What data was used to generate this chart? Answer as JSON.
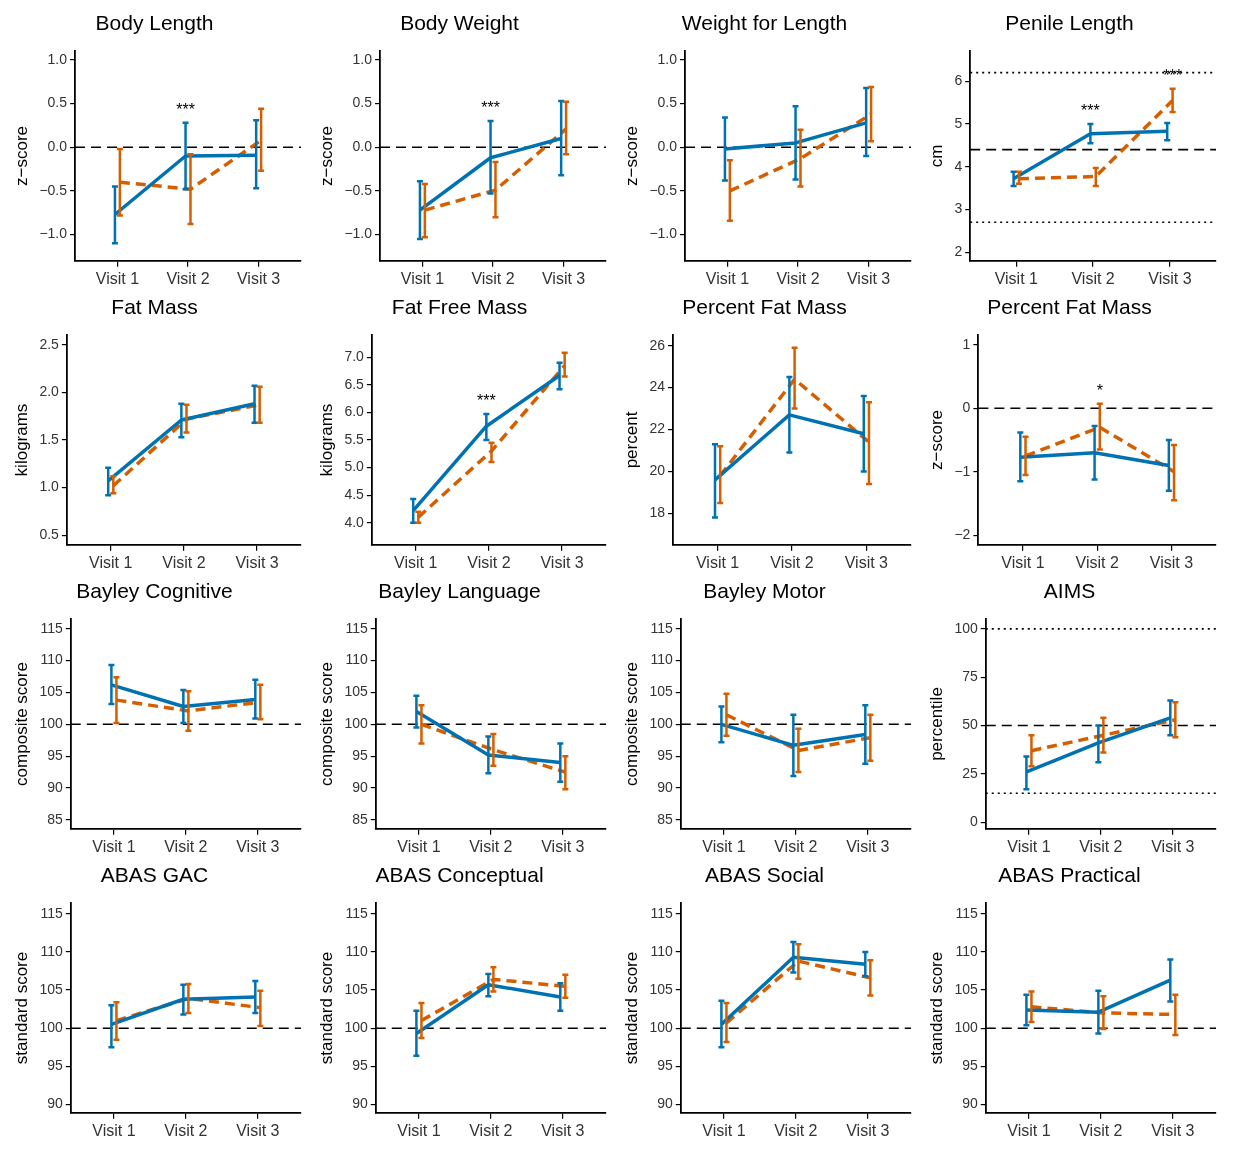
{
  "chart_data": [
    {
      "type": "line",
      "title": "Body Length",
      "ylabel": "z−score",
      "categories": [
        "Visit 1",
        "Visit 2",
        "Visit 3"
      ],
      "ylim": [
        -1.3,
        1.1
      ],
      "yticks": [
        {
          "value": -1,
          "label": "−1.0"
        },
        {
          "value": -0.5,
          "label": "−0.5"
        },
        {
          "value": 0,
          "label": "0.0"
        },
        {
          "value": 0.5,
          "label": "0.5"
        },
        {
          "value": 1,
          "label": "1.0"
        }
      ],
      "marker": "none",
      "series": [
        {
          "color": "#0072b2",
          "line_style": "solid",
          "values": [
            -0.77,
            -0.1,
            -0.09
          ],
          "errors": [
            [
              -1.1,
              -0.45
            ],
            [
              -0.48,
              0.28
            ],
            [
              -0.47,
              0.31
            ]
          ],
          "value_labels": [
            null,
            "***",
            null
          ]
        },
        {
          "color": "#d55e00",
          "line_style": "dashed",
          "values": [
            -0.4,
            -0.48,
            0.08
          ],
          "errors": [
            [
              -0.78,
              -0.02
            ],
            [
              -0.88,
              -0.08
            ],
            [
              -0.27,
              0.44
            ]
          ]
        }
      ],
      "ref_lines": [
        {
          "axis": "y",
          "value": 0,
          "line_style": "dashed"
        }
      ]
    },
    {
      "type": "line",
      "title": "Body Weight",
      "ylabel": "z−score",
      "categories": [
        "Visit 1",
        "Visit 2",
        "Visit 3"
      ],
      "ylim": [
        -1.3,
        1.1
      ],
      "yticks": [
        {
          "value": -1,
          "label": "−1.0"
        },
        {
          "value": -0.5,
          "label": "−0.5"
        },
        {
          "value": 0,
          "label": "0.0"
        },
        {
          "value": 0.5,
          "label": "0.5"
        },
        {
          "value": 1,
          "label": "1.0"
        }
      ],
      "marker": "none",
      "series": [
        {
          "color": "#0072b2",
          "line_style": "solid",
          "values": [
            -0.72,
            -0.12,
            0.1
          ],
          "errors": [
            [
              -1.05,
              -0.39
            ],
            [
              -0.53,
              0.3
            ],
            [
              -0.32,
              0.53
            ]
          ],
          "value_labels": [
            null,
            "***",
            null
          ]
        },
        {
          "color": "#d55e00",
          "line_style": "dashed",
          "values": [
            -0.72,
            -0.49,
            0.21
          ],
          "errors": [
            [
              -1.03,
              -0.42
            ],
            [
              -0.8,
              -0.17
            ],
            [
              -0.08,
              0.52
            ]
          ]
        }
      ],
      "ref_lines": [
        {
          "axis": "y",
          "value": 0,
          "line_style": "dashed"
        }
      ]
    },
    {
      "type": "line",
      "title": "Weight for Length",
      "ylabel": "z−score",
      "categories": [
        "Visit 1",
        "Visit 2",
        "Visit 3"
      ],
      "ylim": [
        -1.3,
        1.1
      ],
      "yticks": [
        {
          "value": -1,
          "label": "−1.0"
        },
        {
          "value": -0.5,
          "label": "−0.5"
        },
        {
          "value": 0,
          "label": "0.0"
        },
        {
          "value": 0.5,
          "label": "0.5"
        },
        {
          "value": 1,
          "label": "1.0"
        }
      ],
      "marker": "none",
      "series": [
        {
          "color": "#0072b2",
          "line_style": "solid",
          "values": [
            -0.02,
            0.05,
            0.28
          ],
          "errors": [
            [
              -0.38,
              0.34
            ],
            [
              -0.37,
              0.47
            ],
            [
              -0.1,
              0.68
            ]
          ]
        },
        {
          "color": "#d55e00",
          "line_style": "dashed",
          "values": [
            -0.5,
            -0.13,
            0.38
          ],
          "errors": [
            [
              -0.84,
              -0.15
            ],
            [
              -0.45,
              0.2
            ],
            [
              0.07,
              0.69
            ]
          ]
        }
      ],
      "ref_lines": [
        {
          "axis": "y",
          "value": 0,
          "line_style": "dashed"
        }
      ]
    },
    {
      "type": "line",
      "title": "Penile Length",
      "ylabel": "cm",
      "categories": [
        "Visit 1",
        "Visit 2",
        "Visit 3"
      ],
      "ylim": [
        1.8,
        6.7
      ],
      "yticks": [
        2,
        3,
        4,
        5,
        6
      ],
      "marker": "none",
      "series": [
        {
          "color": "#0072b2",
          "line_style": "solid",
          "values": [
            3.72,
            4.77,
            4.83
          ],
          "errors": [
            [
              3.55,
              3.88
            ],
            [
              4.55,
              5.0
            ],
            [
              4.62,
              5.02
            ]
          ],
          "value_labels": [
            null,
            "***",
            null
          ]
        },
        {
          "color": "#d55e00",
          "line_style": "dashed",
          "values": [
            3.72,
            3.77,
            5.55
          ],
          "errors": [
            [
              3.6,
              3.88
            ],
            [
              3.55,
              3.97
            ],
            [
              5.28,
              5.82
            ]
          ],
          "value_labels": [
            null,
            null,
            "***"
          ]
        }
      ],
      "ref_lines": [
        {
          "axis": "y",
          "value": 4.4,
          "line_style": "dashed"
        },
        {
          "axis": "y",
          "value": 6.2,
          "line_style": "dotted"
        },
        {
          "axis": "y",
          "value": 2.7,
          "line_style": "dotted"
        }
      ]
    },
    {
      "type": "line",
      "title": "Fat Mass",
      "ylabel": "kilograms",
      "categories": [
        "Visit 1",
        "Visit 2",
        "Visit 3"
      ],
      "ylim": [
        0.4,
        2.6
      ],
      "yticks": [
        0.5,
        {
          "value": 1,
          "label": "1.0"
        },
        1.5,
        {
          "value": 2,
          "label": "2.0"
        },
        2.5
      ],
      "marker": "none",
      "series": [
        {
          "color": "#0072b2",
          "line_style": "solid",
          "values": [
            1.07,
            1.71,
            1.88
          ],
          "errors": [
            [
              0.92,
              1.21
            ],
            [
              1.53,
              1.88
            ],
            [
              1.68,
              2.07
            ]
          ]
        },
        {
          "color": "#d55e00",
          "line_style": "dashed",
          "values": [
            1.02,
            1.72,
            1.87
          ],
          "errors": [
            [
              0.94,
              1.12
            ],
            [
              1.58,
              1.87
            ],
            [
              1.68,
              2.06
            ]
          ]
        }
      ]
    },
    {
      "type": "line",
      "title": "Fat Free Mass",
      "ylabel": "kilograms",
      "categories": [
        "Visit 1",
        "Visit 2",
        "Visit 3"
      ],
      "ylim": [
        3.6,
        7.4
      ],
      "yticks": [
        {
          "value": 4,
          "label": "4.0"
        },
        4.5,
        {
          "value": 5,
          "label": "5.0"
        },
        5.5,
        {
          "value": 6,
          "label": "6.0"
        },
        6.5,
        {
          "value": 7,
          "label": "7.0"
        }
      ],
      "marker": "none",
      "series": [
        {
          "color": "#0072b2",
          "line_style": "solid",
          "values": [
            4.22,
            5.75,
            6.67
          ],
          "errors": [
            [
              4.0,
              4.43
            ],
            [
              5.5,
              5.97
            ],
            [
              6.42,
              6.9
            ]
          ],
          "value_labels": [
            null,
            "***",
            null
          ]
        },
        {
          "color": "#d55e00",
          "line_style": "dashed",
          "values": [
            4.1,
            5.3,
            6.85
          ],
          "errors": [
            [
              4.0,
              4.2
            ],
            [
              5.1,
              5.45
            ],
            [
              6.65,
              7.08
            ]
          ]
        }
      ]
    },
    {
      "type": "line",
      "title": "Percent Fat Mass",
      "ylabel": "percent",
      "categories": [
        "Visit 1",
        "Visit 2",
        "Visit 3"
      ],
      "ylim": [
        16.5,
        26.5
      ],
      "yticks": [
        18,
        20,
        22,
        24,
        26
      ],
      "marker": "none",
      "series": [
        {
          "color": "#0072b2",
          "line_style": "solid",
          "values": [
            19.6,
            22.7,
            21.8
          ],
          "errors": [
            [
              17.8,
              21.3
            ],
            [
              20.9,
              24.5
            ],
            [
              20.0,
              23.6
            ]
          ]
        },
        {
          "color": "#d55e00",
          "line_style": "dashed",
          "values": [
            19.8,
            24.4,
            21.4
          ],
          "errors": [
            [
              18.5,
              21.2
            ],
            [
              23.0,
              25.9
            ],
            [
              19.4,
              23.3
            ]
          ]
        }
      ]
    },
    {
      "type": "line",
      "title": "Percent Fat Mass",
      "ylabel": "z−score",
      "categories": [
        "Visit 1",
        "Visit 2",
        "Visit 3"
      ],
      "ylim": [
        -2.15,
        1.15
      ],
      "yticks": [
        {
          "value": -2,
          "label": "−2"
        },
        {
          "value": -1,
          "label": "−1"
        },
        0,
        1
      ],
      "marker": "none",
      "series": [
        {
          "color": "#0072b2",
          "line_style": "solid",
          "values": [
            -0.77,
            -0.7,
            -0.9
          ],
          "errors": [
            [
              -1.15,
              -0.38
            ],
            [
              -1.12,
              -0.28
            ],
            [
              -1.3,
              -0.5
            ]
          ]
        },
        {
          "color": "#d55e00",
          "line_style": "dashed",
          "values": [
            -0.75,
            -0.3,
            -1.0
          ],
          "errors": [
            [
              -1.05,
              -0.45
            ],
            [
              -0.65,
              0.07
            ],
            [
              -1.45,
              -0.58
            ]
          ],
          "value_labels": [
            null,
            "*",
            null
          ]
        }
      ],
      "ref_lines": [
        {
          "axis": "y",
          "value": 0,
          "line_style": "dashed"
        }
      ]
    },
    {
      "type": "line",
      "title": "Bayley Cognitive",
      "ylabel": "composite score",
      "categories": [
        "Visit 1",
        "Visit 2",
        "Visit 3"
      ],
      "ylim": [
        83.6,
        116.5
      ],
      "yticks": [
        85,
        90,
        95,
        100,
        105,
        110,
        115
      ],
      "marker": "none",
      "series": [
        {
          "color": "#0072b2",
          "line_style": "solid",
          "values": [
            106.2,
            102.8,
            103.9
          ],
          "errors": [
            [
              103.2,
              109.3
            ],
            [
              100.2,
              105.4
            ],
            [
              100.9,
              107.0
            ]
          ]
        },
        {
          "color": "#d55e00",
          "line_style": "dashed",
          "values": [
            103.8,
            102.1,
            103.5
          ],
          "errors": [
            [
              100.2,
              107.4
            ],
            [
              99.0,
              105.2
            ],
            [
              100.8,
              106.2
            ]
          ]
        }
      ],
      "ref_lines": [
        {
          "axis": "y",
          "value": 100,
          "line_style": "dashed"
        }
      ]
    },
    {
      "type": "line",
      "title": "Bayley Language",
      "ylabel": "composite score",
      "categories": [
        "Visit 1",
        "Visit 2",
        "Visit 3"
      ],
      "ylim": [
        83.6,
        116.5
      ],
      "yticks": [
        85,
        90,
        95,
        100,
        105,
        110,
        115
      ],
      "marker": "none",
      "series": [
        {
          "color": "#0072b2",
          "line_style": "solid",
          "values": [
            102.0,
            95.2,
            94.0
          ],
          "errors": [
            [
              99.5,
              104.5
            ],
            [
              92.3,
              98.1
            ],
            [
              91.0,
              97.0
            ]
          ]
        },
        {
          "color": "#d55e00",
          "line_style": "dashed",
          "values": [
            100.0,
            96.0,
            92.5
          ],
          "errors": [
            [
              97.0,
              103.0
            ],
            [
              93.5,
              98.5
            ],
            [
              89.8,
              95.0
            ]
          ]
        }
      ],
      "ref_lines": [
        {
          "axis": "y",
          "value": 100,
          "line_style": "dashed"
        }
      ]
    },
    {
      "type": "line",
      "title": "Bayley Motor",
      "ylabel": "composite score",
      "categories": [
        "Visit 1",
        "Visit 2",
        "Visit 3"
      ],
      "ylim": [
        83.6,
        116.5
      ],
      "yticks": [
        85,
        90,
        95,
        100,
        105,
        110,
        115
      ],
      "marker": "none",
      "series": [
        {
          "color": "#0072b2",
          "line_style": "solid",
          "values": [
            100.0,
            96.7,
            98.4
          ],
          "errors": [
            [
              97.2,
              102.8
            ],
            [
              91.9,
              101.5
            ],
            [
              93.8,
              103.0
            ]
          ]
        },
        {
          "color": "#d55e00",
          "line_style": "dashed",
          "values": [
            101.5,
            95.9,
            97.9
          ],
          "errors": [
            [
              98.2,
              104.8
            ],
            [
              92.5,
              99.3
            ],
            [
              94.3,
              101.5
            ]
          ]
        }
      ],
      "ref_lines": [
        {
          "axis": "y",
          "value": 100,
          "line_style": "dashed"
        }
      ]
    },
    {
      "type": "line",
      "title": "AIMS",
      "ylabel": "percentile",
      "categories": [
        "Visit 1",
        "Visit 2",
        "Visit 3"
      ],
      "ylim": [
        -3.4,
        105
      ],
      "yticks": [
        0,
        25,
        50,
        75,
        100
      ],
      "marker": "none",
      "series": [
        {
          "color": "#0072b2",
          "line_style": "solid",
          "values": [
            26,
            41,
            54
          ],
          "errors": [
            [
              17,
              34
            ],
            [
              31,
              50
            ],
            [
              45,
              63
            ]
          ]
        },
        {
          "color": "#d55e00",
          "line_style": "dashed",
          "values": [
            37,
            45,
            53
          ],
          "errors": [
            [
              29,
              45
            ],
            [
              36,
              54
            ],
            [
              44,
              62
            ]
          ]
        }
      ],
      "ref_lines": [
        {
          "axis": "y",
          "value": 50,
          "line_style": "dashed"
        },
        {
          "axis": "y",
          "value": 100,
          "line_style": "dotted"
        },
        {
          "axis": "y",
          "value": 15,
          "line_style": "dotted"
        }
      ]
    },
    {
      "type": "line",
      "title": "ABAS GAC",
      "ylabel": "standard score",
      "categories": [
        "Visit 1",
        "Visit 2",
        "Visit 3"
      ],
      "ylim": [
        88.9,
        116.4
      ],
      "yticks": [
        90,
        95,
        100,
        105,
        110,
        115
      ],
      "marker": "none",
      "series": [
        {
          "color": "#0072b2",
          "line_style": "solid",
          "values": [
            100.5,
            103.8,
            104.1
          ],
          "errors": [
            [
              97.5,
              103.0
            ],
            [
              101.8,
              105.7
            ],
            [
              102.0,
              106.2
            ]
          ]
        },
        {
          "color": "#d55e00",
          "line_style": "dashed",
          "values": [
            101.0,
            103.9,
            102.7
          ],
          "errors": [
            [
              98.5,
              103.4
            ],
            [
              102.0,
              105.8
            ],
            [
              100.3,
              104.9
            ]
          ]
        }
      ],
      "ref_lines": [
        {
          "axis": "y",
          "value": 100,
          "line_style": "dashed"
        }
      ]
    },
    {
      "type": "line",
      "title": "ABAS Conceptual",
      "ylabel": "standard score",
      "categories": [
        "Visit 1",
        "Visit 2",
        "Visit 3"
      ],
      "ylim": [
        88.9,
        116.4
      ],
      "yticks": [
        90,
        95,
        100,
        105,
        110,
        115
      ],
      "marker": "none",
      "series": [
        {
          "color": "#0072b2",
          "line_style": "solid",
          "values": [
            99.3,
            105.7,
            104.1
          ],
          "errors": [
            [
              96.4,
              102.3
            ],
            [
              104.2,
              107.1
            ],
            [
              102.3,
              105.9
            ]
          ]
        },
        {
          "color": "#d55e00",
          "line_style": "dashed",
          "values": [
            101.0,
            106.4,
            105.5
          ],
          "errors": [
            [
              98.7,
              103.3
            ],
            [
              104.8,
              108.0
            ],
            [
              104.0,
              107.0
            ]
          ]
        }
      ],
      "ref_lines": [
        {
          "axis": "y",
          "value": 100,
          "line_style": "dashed"
        }
      ]
    },
    {
      "type": "line",
      "title": "ABAS Social",
      "ylabel": "standard score",
      "categories": [
        "Visit 1",
        "Visit 2",
        "Visit 3"
      ],
      "ylim": [
        88.9,
        116.4
      ],
      "yticks": [
        90,
        95,
        100,
        105,
        110,
        115
      ],
      "marker": "none",
      "series": [
        {
          "color": "#0072b2",
          "line_style": "solid",
          "values": [
            100.5,
            109.3,
            108.4
          ],
          "errors": [
            [
              97.5,
              103.6
            ],
            [
              107.3,
              111.3
            ],
            [
              106.8,
              110.0
            ]
          ]
        },
        {
          "color": "#d55e00",
          "line_style": "dashed",
          "values": [
            100.7,
            108.8,
            106.6
          ],
          "errors": [
            [
              98.2,
              103.3
            ],
            [
              106.5,
              111.0
            ],
            [
              104.3,
              108.9
            ]
          ]
        }
      ],
      "ref_lines": [
        {
          "axis": "y",
          "value": 100,
          "line_style": "dashed"
        }
      ]
    },
    {
      "type": "line",
      "title": "ABAS Practical",
      "ylabel": "standard score",
      "categories": [
        "Visit 1",
        "Visit 2",
        "Visit 3"
      ],
      "ylim": [
        88.9,
        116.4
      ],
      "yticks": [
        90,
        95,
        100,
        105,
        110,
        115
      ],
      "marker": "none",
      "series": [
        {
          "color": "#0072b2",
          "line_style": "solid",
          "values": [
            102.4,
            102.1,
            106.3
          ],
          "errors": [
            [
              100.4,
              104.4
            ],
            [
              99.3,
              104.9
            ],
            [
              103.5,
              109.0
            ]
          ]
        },
        {
          "color": "#d55e00",
          "line_style": "dashed",
          "values": [
            102.8,
            102.0,
            101.8
          ],
          "errors": [
            [
              100.8,
              104.8
            ],
            [
              99.9,
              104.2
            ],
            [
              99.1,
              104.4
            ]
          ]
        }
      ],
      "ref_lines": [
        {
          "axis": "y",
          "value": 100,
          "line_style": "dashed"
        }
      ]
    }
  ]
}
